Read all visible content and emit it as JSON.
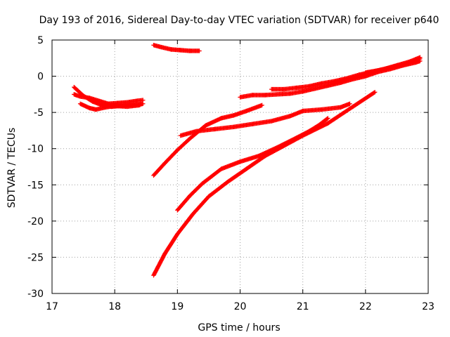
{
  "chart_data": {
    "type": "scatter",
    "title": "Day 193 of 2016, Sidereal Day-to-day VTEC variation (SDTVAR) for receiver p640",
    "xlabel": "GPS time / hours",
    "ylabel": "SDTVAR / TECUs",
    "xlim": [
      17,
      23
    ],
    "ylim": [
      -30,
      5
    ],
    "xticks": [
      17,
      18,
      19,
      20,
      21,
      22,
      23
    ],
    "yticks": [
      -30,
      -25,
      -20,
      -15,
      -10,
      -5,
      0,
      5
    ],
    "grid": true,
    "grid_style": "dotted",
    "marker": "plus",
    "color": "#ff0000",
    "tracks": [
      {
        "x": [
          17.35,
          17.45,
          17.6,
          17.75,
          17.9,
          18.05,
          18.2,
          18.35,
          18.45
        ],
        "y": [
          -2.5,
          -2.8,
          -3.0,
          -3.4,
          -3.8,
          -3.7,
          -3.6,
          -3.4,
          -3.3
        ]
      },
      {
        "x": [
          17.35,
          17.5,
          17.65,
          17.8,
          17.95,
          18.1,
          18.25,
          18.4,
          18.45
        ],
        "y": [
          -1.5,
          -2.7,
          -3.5,
          -4.0,
          -4.2,
          -4.1,
          -4.0,
          -3.9,
          -3.8
        ]
      },
      {
        "x": [
          17.45,
          17.6,
          17.7,
          17.85,
          18.0,
          18.2,
          18.4
        ],
        "y": [
          -3.8,
          -4.4,
          -4.6,
          -4.3,
          -4.1,
          -4.2,
          -4.0
        ]
      },
      {
        "x": [
          18.62,
          18.75,
          18.9,
          19.05,
          19.2,
          19.35
        ],
        "y": [
          4.3,
          4.0,
          3.7,
          3.6,
          3.5,
          3.5
        ]
      },
      {
        "x": [
          18.62,
          18.8,
          19.0,
          19.2,
          19.45,
          19.7,
          19.9,
          20.1,
          20.35
        ],
        "y": [
          -13.7,
          -12.0,
          -10.2,
          -8.6,
          -6.8,
          -5.8,
          -5.4,
          -4.8,
          -4.0
        ]
      },
      {
        "x": [
          19.05,
          19.3,
          19.6,
          19.9,
          20.2,
          20.5,
          20.8,
          21.0,
          21.3,
          21.6,
          21.75
        ],
        "y": [
          -8.2,
          -7.6,
          -7.3,
          -7.0,
          -6.6,
          -6.2,
          -5.5,
          -4.8,
          -4.6,
          -4.3,
          -3.8
        ]
      },
      {
        "x": [
          19.0,
          19.2,
          19.4,
          19.7,
          20.0,
          20.3,
          20.6,
          20.9,
          21.1,
          21.25,
          21.4
        ],
        "y": [
          -18.5,
          -16.5,
          -14.8,
          -12.8,
          -11.8,
          -11.0,
          -9.8,
          -8.5,
          -7.6,
          -6.8,
          -5.8
        ]
      },
      {
        "x": [
          18.62,
          18.8,
          19.0,
          19.25,
          19.5,
          19.8,
          20.1,
          20.4,
          20.7,
          21.0,
          21.4,
          21.8,
          22.15
        ],
        "y": [
          -27.5,
          -24.5,
          -21.8,
          -19.0,
          -16.6,
          -14.6,
          -12.8,
          -11.0,
          -9.6,
          -8.2,
          -6.5,
          -4.2,
          -2.2
        ]
      },
      {
        "x": [
          20.0,
          20.2,
          20.4,
          20.6,
          20.8,
          21.0,
          21.2,
          21.4,
          21.6,
          21.8,
          22.0,
          22.2,
          22.4,
          22.6,
          22.8,
          22.87
        ],
        "y": [
          -2.9,
          -2.6,
          -2.6,
          -2.5,
          -2.4,
          -2.1,
          -1.7,
          -1.3,
          -0.9,
          -0.4,
          0.0,
          0.6,
          1.0,
          1.5,
          1.9,
          2.1
        ]
      },
      {
        "x": [
          20.5,
          20.7,
          20.9,
          21.1,
          21.3,
          21.5,
          21.7,
          21.9,
          22.1,
          22.3,
          22.5,
          22.7,
          22.87
        ],
        "y": [
          -1.8,
          -1.8,
          -1.6,
          -1.4,
          -1.0,
          -0.7,
          -0.3,
          0.2,
          0.6,
          1.0,
          1.5,
          2.0,
          2.6
        ]
      },
      {
        "x": [
          22.0,
          22.2,
          22.4,
          22.6,
          22.8,
          22.87
        ],
        "y": [
          0.5,
          0.8,
          1.2,
          1.6,
          2.1,
          2.4
        ]
      }
    ]
  }
}
